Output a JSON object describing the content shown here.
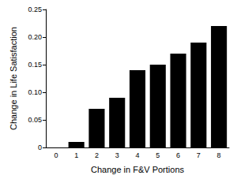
{
  "chart_data": {
    "type": "bar",
    "x_label": "Change in F&V Portions",
    "y_label": "Change in Life Satisfaction",
    "categories": [
      "0",
      "1",
      "2",
      "3",
      "4",
      "5",
      "6",
      "7",
      "8"
    ],
    "values": [
      0,
      0.01,
      0.07,
      0.09,
      0.14,
      0.15,
      0.17,
      0.19,
      0.22
    ],
    "color": "#000000",
    "ylim": [
      0,
      0.25
    ],
    "yticks": [
      {
        "value": 0,
        "label": "0"
      },
      0.05,
      {
        "value": 0.1,
        "label": "0.10"
      },
      0.15,
      {
        "value": 0.2,
        "label": "0.20"
      },
      0.25
    ],
    "grid": false
  }
}
